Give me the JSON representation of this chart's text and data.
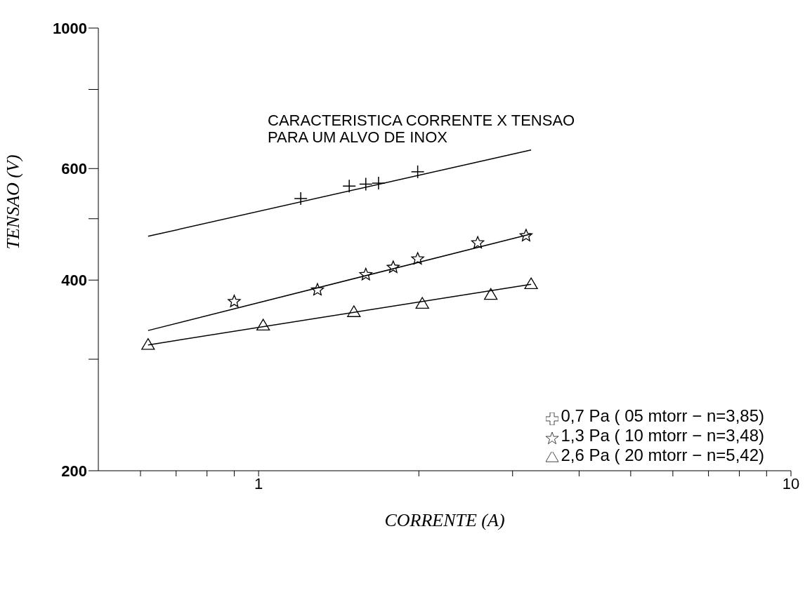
{
  "chart_data": {
    "type": "scatter",
    "title": "CARACTERISTICA CORRENTE X TENSAO\nPARA UM ALVO DE INOX",
    "xlabel": "CORRENTE (A)",
    "ylabel": "TENSAO (V)",
    "log": "xy",
    "grid": false,
    "legend": "bottom right",
    "xlim": [
      0.5,
      10
    ],
    "xticks": [
      {
        "value": 0.6,
        "label": null
      },
      {
        "value": 0.7,
        "label": null
      },
      {
        "value": 0.8,
        "label": null
      },
      {
        "value": 0.9,
        "label": null
      },
      1,
      {
        "value": 2,
        "label": null
      },
      {
        "value": 3,
        "label": null
      },
      {
        "value": 4,
        "label": null
      },
      {
        "value": 5,
        "label": null
      },
      {
        "value": 6,
        "label": null
      },
      {
        "value": 7,
        "label": null
      },
      {
        "value": 8,
        "label": null
      },
      {
        "value": 9,
        "label": null
      },
      10
    ],
    "ylim": [
      200,
      1000
    ],
    "yticks": [
      200,
      {
        "value": 300,
        "label": null
      },
      400,
      {
        "value": 500,
        "label": null
      },
      600,
      {
        "value": 800,
        "label": null
      },
      1000
    ],
    "series": [
      {
        "type": "line",
        "color": "#000000",
        "x": [
          0.62,
          3.25
        ],
        "values": [
          469,
          642
        ]
      },
      {
        "type": "line",
        "color": "#000000",
        "x": [
          0.62,
          3.25
        ],
        "values": [
          333,
          473
        ]
      },
      {
        "color": "#000000",
        "x": [
          0.62,
          3.25
        ],
        "values": [
          316,
          394
        ],
        "type": "line"
      },
      {
        "type": "scatter",
        "name": "0,7 Pa ( 05 mtorr − n=3,85)",
        "marker": "cross",
        "color": "#000000",
        "x": [
          1.2,
          1.48,
          1.59,
          1.68,
          1.99
        ],
        "values": [
          538,
          563,
          567,
          569,
          593
        ]
      },
      {
        "type": "scatter",
        "name": "1,3 Pa ( 10 mtorr − n=3,48)",
        "marker": "star",
        "color": "#000000",
        "x": [
          0.9,
          1.29,
          1.59,
          1.79,
          1.99,
          2.58,
          3.18
        ],
        "values": [
          370,
          386,
          408,
          419,
          432,
          458,
          470
        ]
      },
      {
        "type": "scatter",
        "name": "2,6 Pa ( 20 mtorr − n=5,42)",
        "marker": "triangle",
        "color": "#000000",
        "x": [
          0.62,
          1.02,
          1.51,
          2.03,
          2.73,
          3.25
        ],
        "values": [
          316,
          339,
          356,
          367,
          379,
          394
        ]
      }
    ]
  }
}
